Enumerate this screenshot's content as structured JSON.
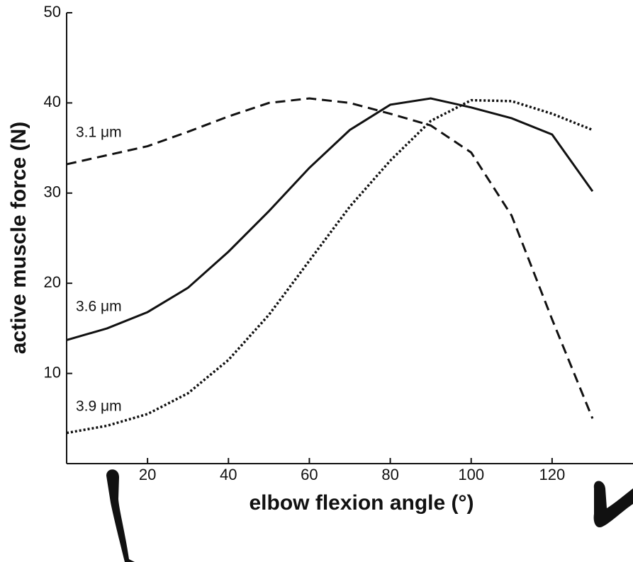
{
  "chart_data": {
    "type": "line",
    "xlabel": "elbow flexion angle (°)",
    "ylabel": "active muscle force (N)",
    "x": [
      0,
      10,
      20,
      30,
      40,
      50,
      60,
      70,
      80,
      90,
      100,
      110,
      120,
      130
    ],
    "series": [
      {
        "name": "3.1 μm",
        "color": "#111111",
        "dash": "dashed",
        "values": [
          33.2,
          34.2,
          35.2,
          36.8,
          38.5,
          40.0,
          40.5,
          40.0,
          38.8,
          37.5,
          34.5,
          27.5,
          16,
          5
        ]
      },
      {
        "name": "3.6 μm",
        "color": "#111111",
        "dash": "solid",
        "values": [
          13.7,
          15,
          16.8,
          19.5,
          23.5,
          28,
          32.8,
          37,
          39.8,
          40.5,
          39.5,
          38.3,
          36.5,
          30.2
        ]
      },
      {
        "name": "3.9 μm",
        "color": "#111111",
        "dash": "dotted",
        "values": [
          3.4,
          4.2,
          5.5,
          7.8,
          11.5,
          16.5,
          22.5,
          28.5,
          33.6,
          38,
          40.3,
          40.2,
          38.8,
          37
        ]
      }
    ],
    "xlim": [
      0,
      140
    ],
    "ylim": [
      0,
      50
    ],
    "xticks": [
      20,
      40,
      60,
      80,
      100,
      120
    ],
    "yticks": [
      10,
      20,
      30,
      40,
      50
    ],
    "grid": false
  }
}
